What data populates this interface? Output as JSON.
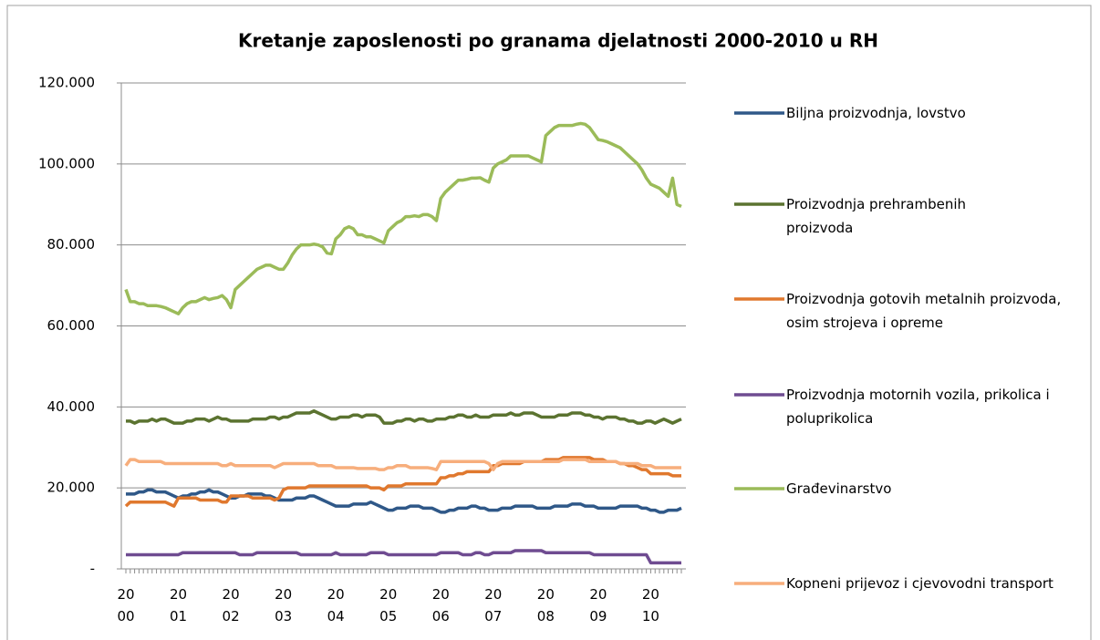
{
  "chart_data": {
    "type": "line",
    "title": "Kretanje zaposlenosti po granama djelatnosti 2000-2010 u RH",
    "categories": [
      "2000",
      null,
      null,
      null,
      null,
      null,
      null,
      null,
      null,
      null,
      null,
      null,
      "2001",
      null,
      null,
      null,
      null,
      null,
      null,
      null,
      null,
      null,
      null,
      null,
      "2002",
      null,
      null,
      null,
      null,
      null,
      null,
      null,
      null,
      null,
      null,
      null,
      "2003",
      null,
      null,
      null,
      null,
      null,
      null,
      null,
      null,
      null,
      null,
      null,
      "2004",
      null,
      null,
      null,
      null,
      null,
      null,
      null,
      null,
      null,
      null,
      null,
      "2005",
      null,
      null,
      null,
      null,
      null,
      null,
      null,
      null,
      null,
      null,
      null,
      "2006",
      null,
      null,
      null,
      null,
      null,
      null,
      null,
      null,
      null,
      null,
      null,
      "2007",
      null,
      null,
      null,
      null,
      null,
      null,
      null,
      null,
      null,
      null,
      null,
      "2008",
      null,
      null,
      null,
      null,
      null,
      null,
      null,
      null,
      null,
      null,
      null,
      "2009",
      null,
      null,
      null,
      null,
      null,
      null,
      null,
      null,
      null,
      null,
      null,
      "2010",
      null,
      null,
      null,
      null,
      null,
      null,
      null
    ],
    "ylim": [
      0,
      120000
    ],
    "yticks": [
      {
        "value": 0,
        "label": "-"
      },
      {
        "value": 20000,
        "label": "20.000"
      },
      {
        "value": 40000,
        "label": "40.000"
      },
      {
        "value": 60000,
        "label": "60.000"
      },
      {
        "value": 80000,
        "label": "80.000"
      },
      {
        "value": 100000,
        "label": "100.000"
      },
      {
        "value": 120000,
        "label": "120.000"
      }
    ],
    "grid": true,
    "legend": "right",
    "series": [
      {
        "name": "Biljna proizvodnja, lovstvo",
        "color": "#2f5888",
        "values": [
          18500,
          18500,
          18500,
          19000,
          19000,
          19500,
          19500,
          19000,
          19000,
          19000,
          18500,
          18000,
          17500,
          18000,
          18000,
          18500,
          18500,
          19000,
          19000,
          19500,
          19000,
          19000,
          18500,
          18000,
          17500,
          17500,
          18000,
          18000,
          18500,
          18500,
          18500,
          18500,
          18000,
          18000,
          17500,
          17000,
          17000,
          17000,
          17000,
          17500,
          17500,
          17500,
          18000,
          18000,
          17500,
          17000,
          16500,
          16000,
          15500,
          15500,
          15500,
          15500,
          16000,
          16000,
          16000,
          16000,
          16500,
          16000,
          15500,
          15000,
          14500,
          14500,
          15000,
          15000,
          15000,
          15500,
          15500,
          15500,
          15000,
          15000,
          15000,
          14500,
          14000,
          14000,
          14500,
          14500,
          15000,
          15000,
          15000,
          15500,
          15500,
          15000,
          15000,
          14500,
          14500,
          14500,
          15000,
          15000,
          15000,
          15500,
          15500,
          15500,
          15500,
          15500,
          15000,
          15000,
          15000,
          15000,
          15500,
          15500,
          15500,
          15500,
          16000,
          16000,
          16000,
          15500,
          15500,
          15500,
          15000,
          15000,
          15000,
          15000,
          15000,
          15500,
          15500,
          15500,
          15500,
          15500,
          15000,
          15000,
          14500,
          14500,
          14000,
          14000,
          14500,
          14500,
          14500,
          15000
        ]
      },
      {
        "name": "Proizvodnja prehrambenih proizvoda",
        "color": "#5b7330",
        "values": [
          36500,
          36500,
          36000,
          36500,
          36500,
          36500,
          37000,
          36500,
          37000,
          37000,
          36500,
          36000,
          36000,
          36000,
          36500,
          36500,
          37000,
          37000,
          37000,
          36500,
          37000,
          37500,
          37000,
          37000,
          36500,
          36500,
          36500,
          36500,
          36500,
          37000,
          37000,
          37000,
          37000,
          37500,
          37500,
          37000,
          37500,
          37500,
          38000,
          38500,
          38500,
          38500,
          38500,
          39000,
          38500,
          38000,
          37500,
          37000,
          37000,
          37500,
          37500,
          37500,
          38000,
          38000,
          37500,
          38000,
          38000,
          38000,
          37500,
          36000,
          36000,
          36000,
          36500,
          36500,
          37000,
          37000,
          36500,
          37000,
          37000,
          36500,
          36500,
          37000,
          37000,
          37000,
          37500,
          37500,
          38000,
          38000,
          37500,
          37500,
          38000,
          37500,
          37500,
          37500,
          38000,
          38000,
          38000,
          38000,
          38500,
          38000,
          38000,
          38500,
          38500,
          38500,
          38000,
          37500,
          37500,
          37500,
          37500,
          38000,
          38000,
          38000,
          38500,
          38500,
          38500,
          38000,
          38000,
          37500,
          37500,
          37000,
          37500,
          37500,
          37500,
          37000,
          37000,
          36500,
          36500,
          36000,
          36000,
          36500,
          36500,
          36000,
          36500,
          37000,
          36500,
          36000,
          36500,
          37000
        ]
      },
      {
        "name": "Proizvodnja gotovih metalnih proizvoda, osim strojeva i opreme",
        "color": "#e0782e",
        "values": [
          15500,
          16500,
          16500,
          16500,
          16500,
          16500,
          16500,
          16500,
          16500,
          16500,
          16000,
          15500,
          17500,
          17500,
          17500,
          17500,
          17500,
          17000,
          17000,
          17000,
          17000,
          17000,
          16500,
          16500,
          18000,
          18000,
          18000,
          18000,
          18000,
          17500,
          17500,
          17500,
          17500,
          17500,
          17000,
          17500,
          19500,
          20000,
          20000,
          20000,
          20000,
          20000,
          20500,
          20500,
          20500,
          20500,
          20500,
          20500,
          20500,
          20500,
          20500,
          20500,
          20500,
          20500,
          20500,
          20500,
          20000,
          20000,
          20000,
          19500,
          20500,
          20500,
          20500,
          20500,
          21000,
          21000,
          21000,
          21000,
          21000,
          21000,
          21000,
          21000,
          22500,
          22500,
          23000,
          23000,
          23500,
          23500,
          24000,
          24000,
          24000,
          24000,
          24000,
          24000,
          25500,
          25500,
          26000,
          26000,
          26000,
          26000,
          26000,
          26500,
          26500,
          26500,
          26500,
          26500,
          27000,
          27000,
          27000,
          27000,
          27500,
          27500,
          27500,
          27500,
          27500,
          27500,
          27500,
          27000,
          27000,
          27000,
          26500,
          26500,
          26500,
          26000,
          26000,
          25500,
          25500,
          25000,
          24500,
          24500,
          23500,
          23500,
          23500,
          23500,
          23500,
          23000,
          23000,
          23000
        ]
      },
      {
        "name": "Proizvodnja motornih vozila, prikolica i poluprikolica",
        "color": "#6f4c91",
        "values": [
          3500,
          3500,
          3500,
          3500,
          3500,
          3500,
          3500,
          3500,
          3500,
          3500,
          3500,
          3500,
          3500,
          4000,
          4000,
          4000,
          4000,
          4000,
          4000,
          4000,
          4000,
          4000,
          4000,
          4000,
          4000,
          4000,
          3500,
          3500,
          3500,
          3500,
          4000,
          4000,
          4000,
          4000,
          4000,
          4000,
          4000,
          4000,
          4000,
          4000,
          3500,
          3500,
          3500,
          3500,
          3500,
          3500,
          3500,
          3500,
          4000,
          3500,
          3500,
          3500,
          3500,
          3500,
          3500,
          3500,
          4000,
          4000,
          4000,
          4000,
          3500,
          3500,
          3500,
          3500,
          3500,
          3500,
          3500,
          3500,
          3500,
          3500,
          3500,
          3500,
          4000,
          4000,
          4000,
          4000,
          4000,
          3500,
          3500,
          3500,
          4000,
          4000,
          3500,
          3500,
          4000,
          4000,
          4000,
          4000,
          4000,
          4500,
          4500,
          4500,
          4500,
          4500,
          4500,
          4500,
          4000,
          4000,
          4000,
          4000,
          4000,
          4000,
          4000,
          4000,
          4000,
          4000,
          4000,
          3500,
          3500,
          3500,
          3500,
          3500,
          3500,
          3500,
          3500,
          3500,
          3500,
          3500,
          3500,
          3500,
          1500,
          1500,
          1500,
          1500,
          1500,
          1500,
          1500,
          1500
        ]
      },
      {
        "name": "Građevinarstvo",
        "color": "#9bbb59",
        "values": [
          69000,
          66000,
          66000,
          65500,
          65500,
          65000,
          65000,
          65000,
          64800,
          64500,
          64000,
          63500,
          63000,
          64500,
          65500,
          66000,
          66000,
          66500,
          67000,
          66500,
          66800,
          67000,
          67500,
          66500,
          64500,
          69000,
          70000,
          71000,
          72000,
          73000,
          74000,
          74500,
          75000,
          75000,
          74500,
          74000,
          74000,
          75500,
          77500,
          79000,
          80000,
          80000,
          80000,
          80200,
          80000,
          79500,
          78000,
          77800,
          81500,
          82500,
          84000,
          84500,
          84000,
          82500,
          82500,
          82000,
          82000,
          81500,
          81000,
          80500,
          83500,
          84500,
          85500,
          86000,
          87000,
          87000,
          87200,
          87000,
          87500,
          87500,
          87000,
          86000,
          91500,
          93000,
          94000,
          95000,
          96000,
          96000,
          96200,
          96500,
          96500,
          96600,
          96000,
          95500,
          99000,
          100000,
          100500,
          101000,
          102000,
          102000,
          102000,
          102000,
          102000,
          101500,
          101000,
          100500,
          107000,
          108000,
          109000,
          109500,
          109500,
          109500,
          109500,
          109800,
          110000,
          109800,
          109000,
          107500,
          106000,
          105800,
          105500,
          105000,
          104500,
          104000,
          103000,
          102000,
          101000,
          100000,
          98500,
          96500,
          95000,
          94500,
          94000,
          93000,
          92000,
          96500,
          90000,
          89500
        ]
      },
      {
        "name": "Kopneni prijevoz i cjevovodni transport",
        "color": "#f7ae7c",
        "values": [
          25500,
          27000,
          27000,
          26500,
          26500,
          26500,
          26500,
          26500,
          26500,
          26000,
          26000,
          26000,
          26000,
          26000,
          26000,
          26000,
          26000,
          26000,
          26000,
          26000,
          26000,
          26000,
          25500,
          25500,
          26000,
          25500,
          25500,
          25500,
          25500,
          25500,
          25500,
          25500,
          25500,
          25500,
          25000,
          25500,
          26000,
          26000,
          26000,
          26000,
          26000,
          26000,
          26000,
          26000,
          25500,
          25500,
          25500,
          25500,
          25000,
          25000,
          25000,
          25000,
          25000,
          24800,
          24800,
          24800,
          24800,
          24800,
          24500,
          24500,
          25000,
          25000,
          25500,
          25500,
          25500,
          25000,
          25000,
          25000,
          25000,
          25000,
          24800,
          24500,
          26500,
          26500,
          26500,
          26500,
          26500,
          26500,
          26500,
          26500,
          26500,
          26500,
          26500,
          26000,
          24500,
          26000,
          26500,
          26500,
          26500,
          26500,
          26500,
          26500,
          26500,
          26500,
          26500,
          26500,
          26500,
          26500,
          26500,
          26500,
          27000,
          27000,
          27000,
          27000,
          27000,
          27000,
          26500,
          26500,
          26500,
          26500,
          26500,
          26500,
          26500,
          26000,
          26000,
          26000,
          26000,
          26000,
          25500,
          25500,
          25500,
          25000,
          25000,
          25000,
          25000,
          25000,
          25000,
          25000
        ]
      }
    ]
  }
}
